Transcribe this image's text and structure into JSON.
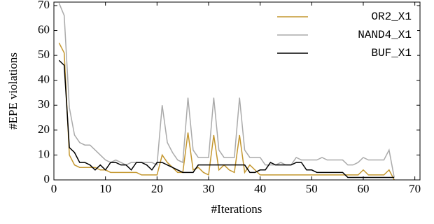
{
  "chart_data": {
    "type": "line",
    "xlabel": "#Iterations",
    "ylabel": "#EPE violations",
    "x": [
      1,
      2,
      3,
      4,
      5,
      6,
      7,
      8,
      9,
      10,
      11,
      12,
      13,
      14,
      15,
      16,
      17,
      18,
      19,
      20,
      21,
      22,
      23,
      24,
      25,
      26,
      27,
      28,
      29,
      30,
      31,
      32,
      33,
      34,
      35,
      36,
      37,
      38,
      39,
      40,
      41,
      42,
      43,
      44,
      45,
      46,
      47,
      48,
      49,
      50,
      51,
      52,
      53,
      54,
      55,
      56,
      57,
      58,
      59,
      60,
      61,
      62,
      63,
      64,
      65,
      66
    ],
    "series": [
      {
        "name": "OR2_X1",
        "color": "#c4972f",
        "values": [
          55,
          51,
          10,
          6,
          5,
          5,
          5,
          5,
          4,
          4,
          3,
          3,
          3,
          3,
          3,
          3,
          2,
          2,
          2,
          2,
          10,
          7,
          5,
          3,
          3,
          19,
          4,
          5,
          3,
          2,
          18,
          4,
          6,
          4,
          3,
          18,
          3,
          6,
          4,
          2,
          2,
          2,
          2,
          2,
          2,
          2,
          2,
          2,
          2,
          2,
          2,
          2,
          2,
          2,
          2,
          2,
          2,
          2,
          2,
          4,
          2,
          2,
          2,
          2,
          4,
          0
        ]
      },
      {
        "name": "NAND4_X1",
        "color": "#aaaaaa",
        "values": [
          71,
          66,
          29,
          18,
          15,
          14,
          14,
          12,
          10,
          8,
          7,
          8,
          7,
          6,
          7,
          7,
          7,
          7,
          7,
          6,
          30,
          15,
          11,
          8,
          7,
          33,
          12,
          9,
          9,
          9,
          33,
          12,
          9,
          9,
          9,
          33,
          12,
          9,
          9,
          9,
          6,
          6,
          6,
          7,
          6,
          6,
          9,
          8,
          8,
          8,
          8,
          9,
          8,
          8,
          8,
          8,
          6,
          6,
          7,
          9,
          8,
          8,
          8,
          8,
          12,
          1
        ]
      },
      {
        "name": "BUF_X1",
        "color": "#000000",
        "values": [
          48,
          46,
          13,
          11,
          7,
          7,
          6,
          4,
          6,
          4,
          7,
          7,
          6,
          6,
          4,
          7,
          7,
          6,
          4,
          7,
          7,
          6,
          5,
          4,
          3,
          3,
          3,
          6,
          6,
          6,
          6,
          6,
          6,
          6,
          6,
          6,
          6,
          3,
          3,
          4,
          4,
          7,
          6,
          6,
          6,
          6,
          7,
          7,
          4,
          4,
          3,
          3,
          3,
          3,
          3,
          3,
          1,
          1,
          1,
          1,
          1,
          1,
          1,
          1,
          1,
          1
        ]
      }
    ],
    "xlim": [
      0,
      71
    ],
    "ylim": [
      0,
      71.4
    ],
    "xticks": [
      0,
      10,
      20,
      30,
      40,
      50,
      60,
      70
    ],
    "yticks": [
      0,
      10,
      20,
      30,
      40,
      50,
      60,
      70
    ],
    "legend": "upper right"
  }
}
